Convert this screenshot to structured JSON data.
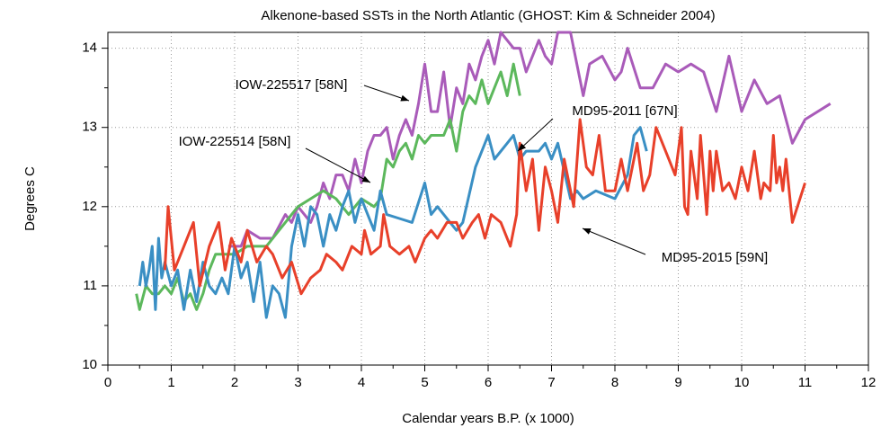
{
  "chart_data": {
    "type": "line",
    "title": "Alkenone-based SSTs in the North Atlantic (GHOST: Kim & Schneider 2004)",
    "x_label": "Calendar years B.P. (x 1000)",
    "y_label": "Degrees C",
    "xlim": [
      0,
      12
    ],
    "ylim": [
      10,
      14.2
    ],
    "xticks": [
      0,
      1,
      2,
      3,
      4,
      5,
      6,
      7,
      8,
      9,
      10,
      11,
      12
    ],
    "yticks": [
      10,
      11,
      12,
      13,
      14
    ],
    "grid": true,
    "series": [
      {
        "name": "IOW-225517 [58N]",
        "color": "#a95bb9",
        "x": [
          1.9,
          2.1,
          2.2,
          2.4,
          2.6,
          2.8,
          2.9,
          3.0,
          3.1,
          3.2,
          3.3,
          3.4,
          3.5,
          3.6,
          3.7,
          3.8,
          3.9,
          4.0,
          4.1,
          4.2,
          4.3,
          4.4,
          4.5,
          4.6,
          4.7,
          4.8,
          4.9,
          5.0,
          5.1,
          5.2,
          5.3,
          5.4,
          5.5,
          5.6,
          5.7,
          5.8,
          5.9,
          6.0,
          6.1,
          6.2,
          6.3,
          6.4,
          6.5,
          6.6,
          6.8,
          6.9,
          7.0,
          7.1,
          7.3,
          7.5,
          7.6,
          7.8,
          8.0,
          8.1,
          8.2,
          8.4,
          8.6,
          8.8,
          9.0,
          9.2,
          9.4,
          9.6,
          9.8,
          10.0,
          10.2,
          10.4,
          10.6,
          10.8,
          11.0,
          11.4
        ],
        "values": [
          11.5,
          11.5,
          11.7,
          11.6,
          11.6,
          11.9,
          11.8,
          12.0,
          11.9,
          11.8,
          12.0,
          12.3,
          12.1,
          12.4,
          12.4,
          12.2,
          12.6,
          12.3,
          12.7,
          12.9,
          12.9,
          13.0,
          12.6,
          12.9,
          13.1,
          12.9,
          13.3,
          13.8,
          13.2,
          13.2,
          13.7,
          13.0,
          13.5,
          13.3,
          13.8,
          13.6,
          13.9,
          14.1,
          13.8,
          14.2,
          14.1,
          14.0,
          14.0,
          13.7,
          14.1,
          13.9,
          13.8,
          14.2,
          14.2,
          13.4,
          13.8,
          13.9,
          13.6,
          13.7,
          14.0,
          13.5,
          13.5,
          13.8,
          13.7,
          13.8,
          13.7,
          13.2,
          13.9,
          13.2,
          13.6,
          13.3,
          13.4,
          12.8,
          13.1,
          13.3
        ]
      },
      {
        "name": "IOW-225514 [58N]",
        "color": "#5cb85c",
        "x": [
          0.45,
          0.5,
          0.6,
          0.7,
          0.8,
          0.9,
          1.0,
          1.1,
          1.2,
          1.3,
          1.4,
          1.5,
          1.6,
          1.7,
          1.8,
          2.0,
          2.2,
          2.5,
          2.7,
          2.8,
          2.9,
          3.0,
          3.2,
          3.4,
          3.6,
          3.8,
          3.9,
          4.0,
          4.2,
          4.3,
          4.4,
          4.5,
          4.6,
          4.7,
          4.8,
          4.9,
          5.0,
          5.1,
          5.3,
          5.4,
          5.5,
          5.6,
          5.7,
          5.8,
          5.9,
          6.0,
          6.1,
          6.2,
          6.3,
          6.4,
          6.5
        ],
        "values": [
          10.9,
          10.7,
          11.0,
          10.9,
          10.9,
          11.0,
          10.9,
          11.1,
          10.8,
          10.9,
          10.7,
          10.9,
          11.2,
          11.4,
          11.4,
          11.4,
          11.5,
          11.5,
          11.7,
          11.8,
          11.9,
          12.0,
          12.1,
          12.2,
          12.1,
          11.9,
          12.0,
          12.1,
          12.0,
          12.1,
          12.6,
          12.5,
          12.7,
          12.8,
          12.6,
          12.9,
          12.8,
          12.9,
          12.9,
          13.1,
          12.7,
          13.2,
          13.4,
          13.3,
          13.6,
          13.3,
          13.5,
          13.7,
          13.4,
          13.8,
          13.4
        ]
      },
      {
        "name": "MD95-2011 [67N]",
        "color": "#3a8fc4",
        "x": [
          0.5,
          0.55,
          0.6,
          0.65,
          0.7,
          0.75,
          0.8,
          0.85,
          0.9,
          1.0,
          1.1,
          1.2,
          1.3,
          1.4,
          1.5,
          1.6,
          1.7,
          1.8,
          1.9,
          2.0,
          2.1,
          2.2,
          2.3,
          2.4,
          2.5,
          2.6,
          2.7,
          2.8,
          2.9,
          3.0,
          3.1,
          3.2,
          3.3,
          3.4,
          3.5,
          3.6,
          3.7,
          3.8,
          3.9,
          4.0,
          4.1,
          4.2,
          4.3,
          4.4,
          4.6,
          4.8,
          5.0,
          5.1,
          5.2,
          5.4,
          5.5,
          5.6,
          5.8,
          6.0,
          6.1,
          6.3,
          6.4,
          6.5,
          6.6,
          6.8,
          6.9,
          7.0,
          7.1,
          7.3,
          7.4,
          7.5,
          7.7,
          8.0,
          8.2,
          8.3,
          8.4,
          8.5
        ],
        "values": [
          11.0,
          11.3,
          11.0,
          11.2,
          11.5,
          10.7,
          11.6,
          11.1,
          11.3,
          11.0,
          11.2,
          10.7,
          11.2,
          10.8,
          11.3,
          11.0,
          10.9,
          11.1,
          10.9,
          11.5,
          11.1,
          11.3,
          10.8,
          11.3,
          10.6,
          11.0,
          10.9,
          10.6,
          11.5,
          11.9,
          11.5,
          12.0,
          11.9,
          11.5,
          11.9,
          11.7,
          12.0,
          12.2,
          11.8,
          12.1,
          11.9,
          11.7,
          12.2,
          11.9,
          11.85,
          11.8,
          12.3,
          11.9,
          12.0,
          11.8,
          11.7,
          11.8,
          12.5,
          12.9,
          12.6,
          12.8,
          12.9,
          12.6,
          12.7,
          12.7,
          12.8,
          12.6,
          12.8,
          12.1,
          12.2,
          12.1,
          12.2,
          12.1,
          12.4,
          12.9,
          13.0,
          12.7
        ]
      },
      {
        "name": "MD95-2015 [59N]",
        "color": "#e8402a",
        "x": [
          0.9,
          0.95,
          1.05,
          1.2,
          1.35,
          1.45,
          1.6,
          1.75,
          1.85,
          1.95,
          2.1,
          2.2,
          2.35,
          2.5,
          2.6,
          2.75,
          2.9,
          3.05,
          3.2,
          3.35,
          3.45,
          3.6,
          3.7,
          3.85,
          4.0,
          4.05,
          4.15,
          4.3,
          4.35,
          4.45,
          4.6,
          4.75,
          4.85,
          5.0,
          5.1,
          5.2,
          5.35,
          5.5,
          5.6,
          5.75,
          5.85,
          5.95,
          6.05,
          6.2,
          6.35,
          6.45,
          6.5,
          6.6,
          6.7,
          6.8,
          6.9,
          7.0,
          7.1,
          7.2,
          7.35,
          7.45,
          7.55,
          7.65,
          7.75,
          7.85,
          8.0,
          8.1,
          8.2,
          8.35,
          8.45,
          8.55,
          8.65,
          8.8,
          8.95,
          9.05,
          9.1,
          9.15,
          9.2,
          9.3,
          9.35,
          9.45,
          9.5,
          9.55,
          9.6,
          9.7,
          9.8,
          9.9,
          10.0,
          10.1,
          10.2,
          10.3,
          10.35,
          10.45,
          10.5,
          10.55,
          10.6,
          10.65,
          10.7,
          10.8,
          11.0
        ],
        "values": [
          11.2,
          12.0,
          11.2,
          11.5,
          11.8,
          11.0,
          11.5,
          11.8,
          11.2,
          11.6,
          11.3,
          11.7,
          11.3,
          11.5,
          11.4,
          11.1,
          11.3,
          10.9,
          11.1,
          11.2,
          11.4,
          11.3,
          11.2,
          11.5,
          11.4,
          11.7,
          11.4,
          11.5,
          11.9,
          11.5,
          11.4,
          11.5,
          11.3,
          11.6,
          11.7,
          11.6,
          11.8,
          11.8,
          11.6,
          11.8,
          11.9,
          11.6,
          11.9,
          11.8,
          11.5,
          11.9,
          12.8,
          12.2,
          12.6,
          11.7,
          12.5,
          12.2,
          11.8,
          12.6,
          12.0,
          13.1,
          12.5,
          12.4,
          12.9,
          12.2,
          12.2,
          12.6,
          12.2,
          12.8,
          12.2,
          12.4,
          13.0,
          12.7,
          12.4,
          13.0,
          12.0,
          11.9,
          12.7,
          12.1,
          12.9,
          11.9,
          12.7,
          12.2,
          12.7,
          12.2,
          12.3,
          12.1,
          12.5,
          12.2,
          12.7,
          12.1,
          12.3,
          12.2,
          12.9,
          12.3,
          12.5,
          12.2,
          12.6,
          11.8,
          12.3
        ]
      }
    ]
  }
}
